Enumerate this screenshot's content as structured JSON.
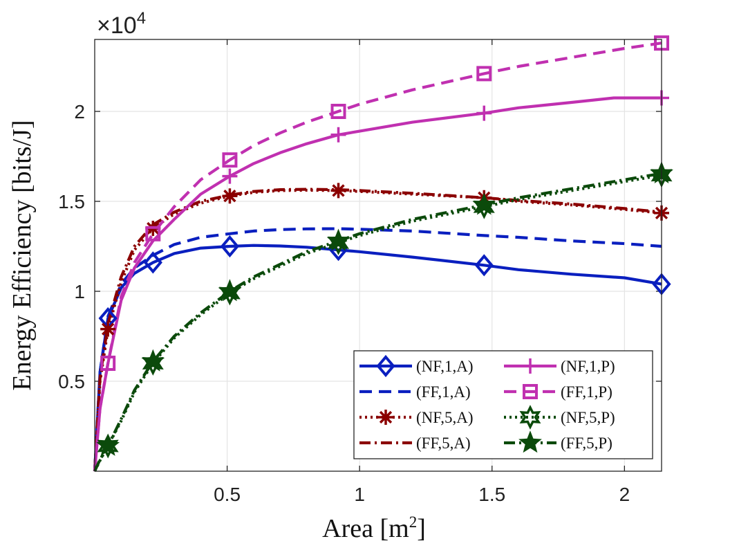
{
  "chart_data": {
    "type": "line",
    "title": "",
    "xlabel": "Area [m",
    "xlabel_sup": "2",
    "xlabel_end": "]",
    "ylabel": "Energy Efficiency [bits/J]",
    "y_multiplier": "×10",
    "y_multiplier_exp": "4",
    "xlim": [
      0,
      2.14
    ],
    "ylim": [
      0,
      2.4
    ],
    "xticks": [
      0.5,
      1,
      1.5,
      2
    ],
    "xtick_labels": [
      "0.5",
      "1",
      "1.5",
      "2"
    ],
    "yticks": [
      0.5,
      1,
      1.5,
      2
    ],
    "ytick_labels": [
      "0.5",
      "1",
      "1.5",
      "2"
    ],
    "grid": true,
    "legend_position": "bottom-right",
    "series": [
      {
        "name": "(NF,1,A)",
        "color": "#0a1fbf",
        "dash": "solid",
        "marker": "diamond",
        "x": [
          0,
          0.02,
          0.05,
          0.1,
          0.15,
          0.22,
          0.3,
          0.4,
          0.51,
          0.6,
          0.7,
          0.8,
          0.92,
          1.0,
          1.2,
          1.47,
          1.6,
          1.8,
          2.0,
          2.14
        ],
        "y": [
          0,
          0.55,
          0.85,
          1.02,
          1.1,
          1.16,
          1.21,
          1.24,
          1.25,
          1.255,
          1.252,
          1.245,
          1.23,
          1.22,
          1.19,
          1.145,
          1.12,
          1.095,
          1.075,
          1.04
        ],
        "marker_x": [
          0.05,
          0.22,
          0.51,
          0.92,
          1.47,
          2.14
        ],
        "marker_y": [
          0.85,
          1.16,
          1.25,
          1.23,
          1.145,
          1.04
        ]
      },
      {
        "name": "(FF,1,A)",
        "color": "#0a1fbf",
        "dash": "dashed",
        "marker": "none",
        "x": [
          0,
          0.02,
          0.05,
          0.1,
          0.15,
          0.22,
          0.3,
          0.4,
          0.51,
          0.6,
          0.7,
          0.8,
          0.92,
          1.0,
          1.2,
          1.47,
          1.6,
          1.8,
          2.0,
          2.14
        ],
        "y": [
          0,
          0.55,
          0.86,
          1.04,
          1.13,
          1.2,
          1.26,
          1.3,
          1.32,
          1.335,
          1.343,
          1.347,
          1.348,
          1.345,
          1.335,
          1.31,
          1.3,
          1.28,
          1.265,
          1.25
        ],
        "marker_x": [],
        "marker_y": []
      },
      {
        "name": "(NF,5,A)",
        "color": "#8b0000",
        "dash": "dotted",
        "marker": "asterisk",
        "x": [
          0,
          0.02,
          0.05,
          0.1,
          0.15,
          0.22,
          0.3,
          0.4,
          0.51,
          0.6,
          0.7,
          0.8,
          0.92,
          1.0,
          1.2,
          1.47,
          1.6,
          1.8,
          2.0,
          2.14
        ],
        "y": [
          0,
          0.5,
          0.79,
          1.05,
          1.23,
          1.35,
          1.43,
          1.49,
          1.53,
          1.55,
          1.56,
          1.562,
          1.56,
          1.555,
          1.54,
          1.52,
          1.5,
          1.48,
          1.455,
          1.435
        ],
        "marker_x": [
          0.05,
          0.22,
          0.51,
          0.92,
          1.47,
          2.14
        ],
        "marker_y": [
          0.79,
          1.35,
          1.53,
          1.56,
          1.52,
          1.435
        ]
      },
      {
        "name": "(FF,5,A)",
        "color": "#8b0000",
        "dash": "dashdot",
        "marker": "none",
        "x": [
          0,
          0.02,
          0.05,
          0.1,
          0.15,
          0.22,
          0.3,
          0.4,
          0.51,
          0.6,
          0.7,
          0.8,
          0.92,
          1.0,
          1.2,
          1.47,
          1.6,
          1.8,
          2.0,
          2.14
        ],
        "y": [
          0,
          0.52,
          0.82,
          1.08,
          1.25,
          1.37,
          1.44,
          1.5,
          1.535,
          1.555,
          1.565,
          1.567,
          1.565,
          1.56,
          1.545,
          1.52,
          1.505,
          1.485,
          1.46,
          1.44
        ],
        "marker_x": [],
        "marker_y": []
      },
      {
        "name": "(NF,1,P)",
        "color": "#c030b0",
        "dash": "solid",
        "marker": "plus",
        "x": [
          0,
          0.02,
          0.05,
          0.1,
          0.15,
          0.22,
          0.3,
          0.4,
          0.51,
          0.6,
          0.7,
          0.8,
          0.92,
          1.0,
          1.2,
          1.47,
          1.6,
          1.8,
          1.96,
          2.14
        ],
        "y": [
          0,
          0.35,
          0.6,
          0.95,
          1.13,
          1.28,
          1.4,
          1.54,
          1.64,
          1.71,
          1.77,
          1.82,
          1.87,
          1.89,
          1.94,
          1.99,
          2.02,
          2.05,
          2.075,
          2.075
        ],
        "marker_x": [
          0.51,
          0.92,
          1.47,
          2.14
        ],
        "marker_y": [
          1.64,
          1.87,
          1.99,
          2.075
        ]
      },
      {
        "name": "(FF,1,P)",
        "color": "#c030b0",
        "dash": "dashed",
        "marker": "square",
        "x": [
          0,
          0.02,
          0.05,
          0.1,
          0.15,
          0.22,
          0.3,
          0.4,
          0.51,
          0.6,
          0.7,
          0.8,
          0.92,
          1.0,
          1.2,
          1.47,
          1.6,
          1.8,
          2.0,
          2.14
        ],
        "y": [
          0,
          0.35,
          0.6,
          0.97,
          1.16,
          1.32,
          1.47,
          1.62,
          1.73,
          1.81,
          1.88,
          1.94,
          2.0,
          2.04,
          2.12,
          2.21,
          2.25,
          2.3,
          2.35,
          2.38
        ],
        "marker_x": [
          0.05,
          0.22,
          0.51,
          0.92,
          1.47,
          2.14
        ],
        "marker_y": [
          0.6,
          1.32,
          1.73,
          2.0,
          2.21,
          2.38
        ]
      },
      {
        "name": "(NF,5,P)",
        "color": "#0b4a0b",
        "dash": "dotted",
        "marker": "hexagram",
        "x": [
          0,
          0.02,
          0.05,
          0.1,
          0.15,
          0.22,
          0.3,
          0.4,
          0.51,
          0.6,
          0.7,
          0.8,
          0.92,
          1.0,
          1.2,
          1.47,
          1.6,
          1.8,
          2.0,
          2.14
        ],
        "y": [
          0,
          0.06,
          0.14,
          0.28,
          0.44,
          0.6,
          0.74,
          0.87,
          0.99,
          1.07,
          1.14,
          1.21,
          1.27,
          1.31,
          1.39,
          1.47,
          1.51,
          1.56,
          1.61,
          1.645
        ],
        "marker_x": [
          0.05,
          0.22,
          0.51,
          0.92,
          1.47,
          2.14
        ],
        "marker_y": [
          0.14,
          0.6,
          0.99,
          1.27,
          1.47,
          1.645
        ]
      },
      {
        "name": "(FF,5,P)",
        "color": "#0b4a0b",
        "dash": "dashdot",
        "marker": "pentagram",
        "x": [
          0,
          0.02,
          0.05,
          0.1,
          0.15,
          0.22,
          0.3,
          0.4,
          0.51,
          0.6,
          0.7,
          0.8,
          0.92,
          1.0,
          1.2,
          1.47,
          1.6,
          1.8,
          2.0,
          2.14
        ],
        "y": [
          0,
          0.065,
          0.14,
          0.29,
          0.45,
          0.61,
          0.75,
          0.88,
          1.0,
          1.08,
          1.15,
          1.22,
          1.28,
          1.32,
          1.4,
          1.48,
          1.52,
          1.57,
          1.62,
          1.655
        ],
        "marker_x": [
          0.05,
          0.22,
          0.51,
          0.92,
          1.47,
          2.14
        ],
        "marker_y": [
          0.14,
          0.61,
          1.0,
          1.28,
          1.48,
          1.655
        ]
      }
    ],
    "legend_columns": [
      [
        "(NF,1,A)",
        "(FF,1,A)",
        "(NF,5,A)",
        "(FF,5,A)"
      ],
      [
        "(NF,1,P)",
        "(FF,1,P)",
        "(NF,5,P)",
        "(FF,5,P)"
      ]
    ]
  }
}
